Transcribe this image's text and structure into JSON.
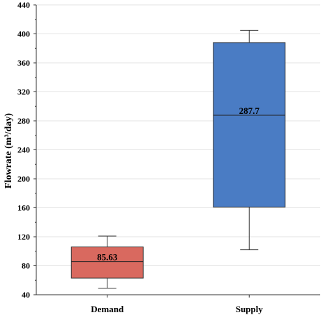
{
  "chart_data": {
    "type": "box",
    "title": "",
    "xlabel": "",
    "ylabel": "Flowrate (m³/day)",
    "ylim": [
      40,
      440
    ],
    "yticks": [
      40,
      80,
      120,
      160,
      200,
      240,
      280,
      320,
      360,
      400,
      440
    ],
    "grid": true,
    "categories": [
      "Demand",
      "Supply"
    ],
    "boxes": [
      {
        "name": "Demand",
        "whisker_low": 49,
        "q1": 63,
        "median": 85.63,
        "q3": 106,
        "whisker_high": 121,
        "median_label": "85.63",
        "color": "#d9695f"
      },
      {
        "name": "Supply",
        "whisker_low": 102,
        "q1": 161,
        "median": 287.7,
        "q3": 388,
        "whisker_high": 405,
        "median_label": "287.7",
        "color": "#4a7cc4"
      }
    ]
  }
}
